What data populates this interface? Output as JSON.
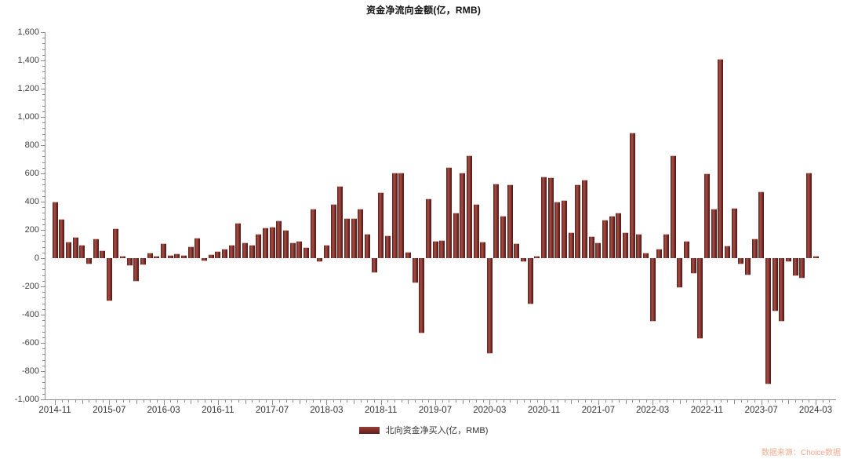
{
  "title": "资金净流向金额(亿，RMB)",
  "legend": {
    "label": "北向资金净买入(亿，RMB)"
  },
  "source": {
    "text": "数据来源：Choice数据"
  },
  "colors": {
    "bar_dark": "#5a1e1b",
    "bar_light": "#a04c44",
    "axis": "#8c8c8c",
    "tick_label": "#3f3f3f",
    "source_text": "#f3a98c",
    "background": "#ffffff"
  },
  "chart_data": {
    "type": "bar",
    "title": "资金净流向金额(亿，RMB)",
    "xlabel": "",
    "ylabel": "",
    "ylim": [
      -1000,
      1600
    ],
    "ytick_step": 200,
    "ytick_minor_step": 40,
    "grid": false,
    "legend_position": "bottom",
    "y_tick_labels": [
      "-1,000",
      "-800",
      "-600",
      "-400",
      "-200",
      "0",
      "200",
      "400",
      "600",
      "800",
      "1,000",
      "1,200",
      "1,400",
      "1,600"
    ],
    "x_tick_labels": [
      "2014-11",
      "2015-07",
      "2016-03",
      "2016-11",
      "2017-07",
      "2018-03",
      "2018-11",
      "2019-07",
      "2020-03",
      "2020-11",
      "2021-07",
      "2022-03",
      "2022-11",
      "2023-07",
      "2024-03"
    ],
    "x": [
      "2014-11",
      "2014-12",
      "2015-01",
      "2015-02",
      "2015-03",
      "2015-04",
      "2015-05",
      "2015-06",
      "2015-07",
      "2015-08",
      "2015-09",
      "2015-10",
      "2015-11",
      "2015-12",
      "2016-01",
      "2016-02",
      "2016-03",
      "2016-04",
      "2016-05",
      "2016-06",
      "2016-07",
      "2016-08",
      "2016-09",
      "2016-10",
      "2016-11",
      "2016-12",
      "2017-01",
      "2017-02",
      "2017-03",
      "2017-04",
      "2017-05",
      "2017-06",
      "2017-07",
      "2017-08",
      "2017-09",
      "2017-10",
      "2017-11",
      "2017-12",
      "2018-01",
      "2018-02",
      "2018-03",
      "2018-04",
      "2018-05",
      "2018-06",
      "2018-07",
      "2018-08",
      "2018-09",
      "2018-10",
      "2018-11",
      "2018-12",
      "2019-01",
      "2019-02",
      "2019-03",
      "2019-04",
      "2019-05",
      "2019-06",
      "2019-07",
      "2019-08",
      "2019-09",
      "2019-10",
      "2019-11",
      "2019-12",
      "2020-01",
      "2020-02",
      "2020-03",
      "2020-04",
      "2020-05",
      "2020-06",
      "2020-07",
      "2020-08",
      "2020-09",
      "2020-10",
      "2020-11",
      "2020-12",
      "2021-01",
      "2021-02",
      "2021-03",
      "2021-04",
      "2021-05",
      "2021-06",
      "2021-07",
      "2021-08",
      "2021-09",
      "2021-10",
      "2021-11",
      "2021-12",
      "2022-01",
      "2022-02",
      "2022-03",
      "2022-04",
      "2022-05",
      "2022-06",
      "2022-07",
      "2022-08",
      "2022-09",
      "2022-10",
      "2022-11",
      "2022-12",
      "2023-01",
      "2023-02",
      "2023-03",
      "2023-04",
      "2023-05",
      "2023-06",
      "2023-07",
      "2023-08",
      "2023-09",
      "2023-10",
      "2023-11",
      "2023-12",
      "2024-01",
      "2024-02",
      "2024-03"
    ],
    "series": [
      {
        "name": "北向资金净买入(亿，RMB)",
        "values": [
          400,
          280,
          115,
          150,
          95,
          -45,
          140,
          55,
          -305,
          210,
          15,
          -55,
          -165,
          -50,
          40,
          15,
          105,
          20,
          35,
          25,
          85,
          145,
          -20,
          30,
          50,
          65,
          95,
          250,
          110,
          95,
          170,
          215,
          220,
          265,
          200,
          110,
          120,
          80,
          350,
          -30,
          95,
          385,
          510,
          285,
          285,
          350,
          175,
          -105,
          465,
          160,
          605,
          605,
          45,
          -180,
          -535,
          425,
          120,
          130,
          645,
          320,
          605,
          730,
          385,
          115,
          -680,
          530,
          300,
          525,
          105,
          -25,
          -330,
          15,
          580,
          570,
          400,
          410,
          185,
          525,
          555,
          155,
          110,
          270,
          300,
          325,
          185,
          890,
          170,
          40,
          -450,
          65,
          170,
          730,
          -210,
          125,
          -110,
          -570,
          600,
          350,
          1410,
          90,
          355,
          -45,
          -120,
          140,
          470,
          -895,
          -375,
          -450,
          -25,
          -130,
          -145,
          605,
          15
        ]
      }
    ]
  }
}
